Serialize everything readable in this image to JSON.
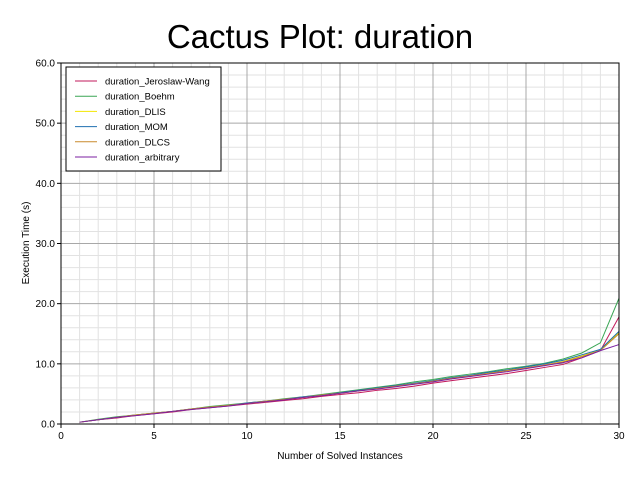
{
  "chart_data": {
    "type": "line",
    "title": "Cactus Plot: duration",
    "xlabel": "Number of Solved Instances",
    "ylabel": "Execution Time (s)",
    "xlim": [
      0,
      30
    ],
    "ylim": [
      0,
      60
    ],
    "x_ticks": [
      "0",
      "5",
      "10",
      "15",
      "20",
      "25",
      "30"
    ],
    "y_ticks": [
      "0.0",
      "10.0",
      "20.0",
      "30.0",
      "40.0",
      "50.0",
      "60.0"
    ],
    "grid": true,
    "legend_position": "top-left",
    "x": [
      1,
      2,
      3,
      4,
      5,
      6,
      7,
      8,
      9,
      10,
      11,
      12,
      13,
      14,
      15,
      16,
      17,
      18,
      19,
      20,
      21,
      22,
      23,
      24,
      25,
      26,
      27,
      28,
      29,
      30
    ],
    "series": [
      {
        "name": "duration_Jeroslaw-Wang",
        "color": "#c2185b",
        "values": [
          0.3,
          0.7,
          1.0,
          1.4,
          1.7,
          2.0,
          2.4,
          2.7,
          3.0,
          3.3,
          3.6,
          3.9,
          4.2,
          4.6,
          4.9,
          5.2,
          5.6,
          5.9,
          6.3,
          6.8,
          7.2,
          7.6,
          8.0,
          8.4,
          8.9,
          9.4,
          9.9,
          11.0,
          12.2,
          17.8
        ]
      },
      {
        "name": "duration_Boehm",
        "color": "#3aa655",
        "values": [
          0.3,
          0.8,
          1.2,
          1.5,
          1.8,
          2.1,
          2.5,
          2.9,
          3.2,
          3.5,
          3.8,
          4.2,
          4.5,
          4.9,
          5.3,
          5.7,
          6.1,
          6.5,
          7.0,
          7.4,
          7.9,
          8.3,
          8.7,
          9.2,
          9.6,
          10.1,
          10.8,
          11.8,
          13.5,
          20.9
        ]
      },
      {
        "name": "duration_DLIS",
        "color": "#f2e600",
        "values": [
          0.3,
          0.7,
          1.1,
          1.5,
          1.8,
          2.1,
          2.5,
          2.8,
          3.1,
          3.4,
          3.7,
          4.1,
          4.4,
          4.8,
          5.2,
          5.5,
          5.9,
          6.3,
          6.7,
          7.2,
          7.6,
          8.0,
          8.5,
          8.9,
          9.3,
          9.8,
          10.4,
          11.3,
          12.3,
          15.2
        ]
      },
      {
        "name": "duration_MOM",
        "color": "#1f6fb0",
        "values": [
          0.3,
          0.7,
          1.1,
          1.5,
          1.8,
          2.1,
          2.5,
          2.8,
          3.1,
          3.5,
          3.8,
          4.1,
          4.5,
          4.8,
          5.2,
          5.6,
          6.0,
          6.4,
          6.8,
          7.2,
          7.7,
          8.1,
          8.6,
          9.0,
          9.5,
          10.0,
          10.6,
          11.5,
          12.4,
          15.4
        ]
      },
      {
        "name": "duration_DLCS",
        "color": "#c98a2d",
        "values": [
          0.3,
          0.7,
          1.1,
          1.5,
          1.8,
          2.1,
          2.5,
          2.8,
          3.1,
          3.4,
          3.8,
          4.1,
          4.4,
          4.8,
          5.1,
          5.5,
          5.9,
          6.3,
          6.7,
          7.1,
          7.6,
          8.0,
          8.4,
          8.9,
          9.3,
          9.8,
          10.3,
          11.2,
          12.2,
          15.0
        ]
      },
      {
        "name": "duration_arbitrary",
        "color": "#7b1fa2",
        "values": [
          0.3,
          0.7,
          1.1,
          1.4,
          1.7,
          2.1,
          2.4,
          2.7,
          3.0,
          3.4,
          3.7,
          4.0,
          4.4,
          4.7,
          5.1,
          5.5,
          5.8,
          6.2,
          6.6,
          7.0,
          7.5,
          7.9,
          8.3,
          8.7,
          9.2,
          9.7,
          10.2,
          11.0,
          12.2,
          13.2
        ]
      }
    ]
  }
}
